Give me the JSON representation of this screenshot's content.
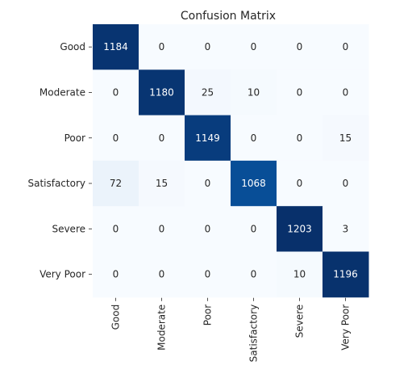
{
  "chart_data": {
    "type": "heatmap",
    "title": "Confusion Matrix",
    "xlabel": "",
    "ylabel": "",
    "row_labels": [
      "Good",
      "Moderate",
      "Poor",
      "Satisfactory",
      "Severe",
      "Very Poor"
    ],
    "col_labels": [
      "Good",
      "Moderate",
      "Poor",
      "Satisfactory",
      "Severe",
      "Very Poor"
    ],
    "values": [
      [
        1184,
        0,
        0,
        0,
        0,
        0
      ],
      [
        0,
        1180,
        25,
        10,
        0,
        0
      ],
      [
        0,
        0,
        1149,
        0,
        0,
        15
      ],
      [
        72,
        15,
        0,
        1068,
        0,
        0
      ],
      [
        0,
        0,
        0,
        0,
        1203,
        3
      ],
      [
        0,
        0,
        0,
        0,
        10,
        1196
      ]
    ],
    "colormap": "Blues",
    "colorbar": false,
    "value_range": [
      0,
      1203
    ]
  }
}
